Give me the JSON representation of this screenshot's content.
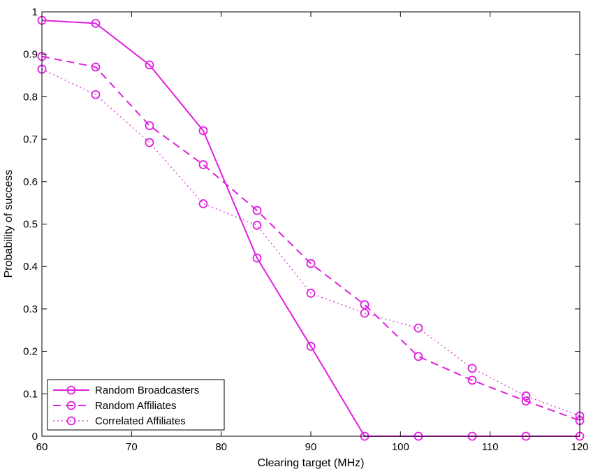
{
  "chart_data": {
    "type": "line",
    "title": "",
    "xlabel": "Clearing target (MHz)",
    "ylabel": "Probability of success",
    "xlim": [
      60,
      120
    ],
    "ylim": [
      0,
      1
    ],
    "xticks": [
      60,
      70,
      80,
      90,
      100,
      110,
      120
    ],
    "yticks": [
      0,
      0.1,
      0.2,
      0.3,
      0.4,
      0.5,
      0.6,
      0.7,
      0.8,
      0.9,
      1
    ],
    "ytick_labels": [
      "0",
      "0.1",
      "0.2",
      "0.3",
      "0.4",
      "0.5",
      "0.6",
      "0.7",
      "0.8",
      "0.9",
      "1"
    ],
    "grid": false,
    "legend_position": "bottom-left",
    "x": [
      60,
      66,
      72,
      78,
      84,
      90,
      96,
      102,
      108,
      114,
      120
    ],
    "series": [
      {
        "name": "Random Broadcasters",
        "linestyle": "solid",
        "marker": "circle",
        "color": "#e020e0",
        "values": [
          0.98,
          0.973,
          0.875,
          0.72,
          0.42,
          0.212,
          0.0,
          0.0,
          0.0,
          0.0,
          0.0
        ]
      },
      {
        "name": "Random Affiliates",
        "linestyle": "dashed",
        "marker": "circle",
        "color": "#e020e0",
        "values": [
          0.895,
          0.87,
          0.732,
          0.64,
          0.532,
          0.407,
          0.31,
          0.188,
          0.132,
          0.083,
          0.037
        ]
      },
      {
        "name": "Correlated Affiliates",
        "linestyle": "dotted",
        "marker": "circle",
        "color": "#e020e0",
        "values": [
          0.865,
          0.805,
          0.692,
          0.548,
          0.497,
          0.337,
          0.29,
          0.255,
          0.16,
          0.095,
          0.048
        ]
      }
    ]
  }
}
